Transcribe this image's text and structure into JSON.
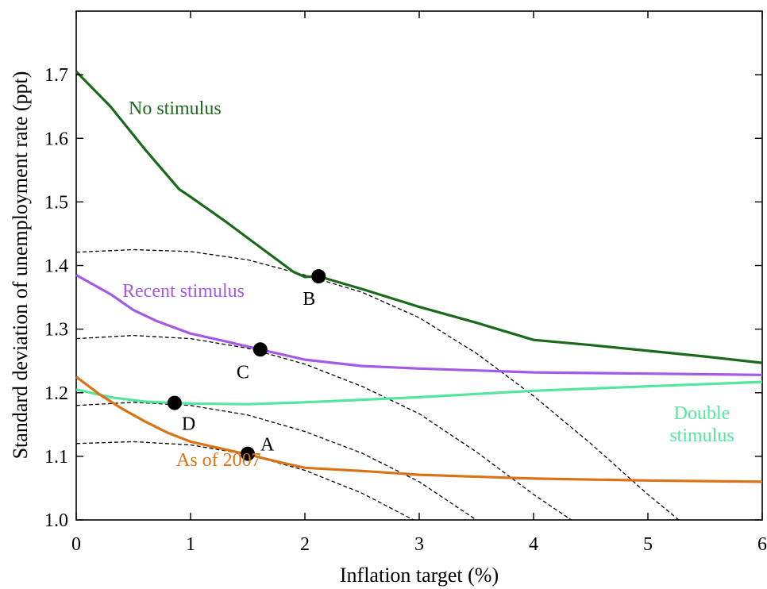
{
  "chart_data": {
    "type": "line",
    "title": "",
    "xlabel": "Inflation target (%)",
    "ylabel": "Standard deviation of unemployment rate (ppt)",
    "xlim": [
      0,
      6
    ],
    "ylim": [
      1.0,
      1.8
    ],
    "xticks": [
      0,
      1,
      2,
      3,
      4,
      5,
      6
    ],
    "yticks": [
      1.0,
      1.1,
      1.2,
      1.3,
      1.4,
      1.5,
      1.6,
      1.7
    ],
    "ytick_labels": [
      "1.0",
      "1.1",
      "1.2",
      "1.3",
      "1.4",
      "1.5",
      "1.6",
      "1.7"
    ],
    "grid": false,
    "legend": "inline labels",
    "series": [
      {
        "name": "No stimulus",
        "color": "#1b6a1b",
        "x": [
          0,
          0.3,
          0.6,
          0.9,
          1.0,
          1.3,
          1.6,
          1.9,
          2.0,
          2.12,
          2.5,
          3.0,
          3.5,
          4.0,
          4.5,
          5.0,
          5.5,
          6.0
        ],
        "y": [
          1.705,
          1.65,
          1.583,
          1.52,
          1.508,
          1.47,
          1.43,
          1.39,
          1.382,
          1.383,
          1.363,
          1.335,
          1.31,
          1.283,
          1.275,
          1.266,
          1.257,
          1.247
        ]
      },
      {
        "name": "Recent stimulus",
        "color": "#a35ae6",
        "x": [
          0,
          0.3,
          0.5,
          0.7,
          1.0,
          1.3,
          1.61,
          2.0,
          2.5,
          3.0,
          3.5,
          4.0,
          5.0,
          6.0
        ],
        "y": [
          1.385,
          1.355,
          1.33,
          1.313,
          1.293,
          1.281,
          1.268,
          1.252,
          1.242,
          1.238,
          1.235,
          1.232,
          1.23,
          1.228
        ]
      },
      {
        "name": "Double stimulus",
        "color": "#55e69e",
        "x": [
          0,
          0.3,
          0.6,
          0.86,
          1.0,
          1.5,
          2.0,
          3.0,
          4.0,
          5.0,
          6.0
        ],
        "y": [
          1.205,
          1.193,
          1.186,
          1.184,
          1.183,
          1.182,
          1.185,
          1.193,
          1.203,
          1.21,
          1.217
        ]
      },
      {
        "name": "As of 2007",
        "color": "#d97316",
        "x": [
          0,
          0.2,
          0.4,
          0.6,
          0.8,
          1.0,
          1.2,
          1.5,
          1.8,
          2.0,
          2.5,
          3.0,
          4.0,
          5.0,
          6.0
        ],
        "y": [
          1.225,
          1.198,
          1.175,
          1.155,
          1.137,
          1.123,
          1.115,
          1.103,
          1.09,
          1.082,
          1.077,
          1.071,
          1.065,
          1.062,
          1.06
        ]
      }
    ],
    "dashed_curves": [
      {
        "x": [
          0,
          0.5,
          1.0,
          1.5,
          2.0,
          2.5,
          3.0,
          3.5,
          4.0,
          4.5,
          5.0,
          5.27
        ],
        "y": [
          1.421,
          1.425,
          1.422,
          1.409,
          1.385,
          1.358,
          1.318,
          1.262,
          1.195,
          1.12,
          1.04,
          1.0
        ]
      },
      {
        "x": [
          0,
          0.5,
          1.0,
          1.5,
          2.0,
          2.5,
          3.0,
          3.5,
          4.0,
          4.33
        ],
        "y": [
          1.285,
          1.29,
          1.285,
          1.27,
          1.245,
          1.21,
          1.167,
          1.107,
          1.04,
          1.0
        ]
      },
      {
        "x": [
          0,
          0.5,
          1.0,
          1.5,
          2.0,
          2.5,
          3.0,
          3.5
        ],
        "y": [
          1.18,
          1.185,
          1.18,
          1.165,
          1.139,
          1.105,
          1.06,
          1.0
        ]
      },
      {
        "x": [
          0,
          0.5,
          1.0,
          1.5,
          2.0,
          2.5,
          2.95
        ],
        "y": [
          1.12,
          1.123,
          1.118,
          1.103,
          1.078,
          1.042,
          1.0
        ]
      }
    ],
    "points": [
      {
        "label": "A",
        "x": 1.5,
        "y": 1.104
      },
      {
        "label": "B",
        "x": 2.12,
        "y": 1.383
      },
      {
        "label": "C",
        "x": 1.61,
        "y": 1.268
      },
      {
        "label": "D",
        "x": 0.86,
        "y": 1.184
      }
    ],
    "annotations": [
      {
        "text": "No stimulus",
        "series": 0
      },
      {
        "text": "Recent stimulus",
        "series": 1
      },
      {
        "text": "Double",
        "series": 2
      },
      {
        "text": "stimulus",
        "series": 2
      },
      {
        "text": "As of 2007",
        "series": 3
      }
    ]
  }
}
